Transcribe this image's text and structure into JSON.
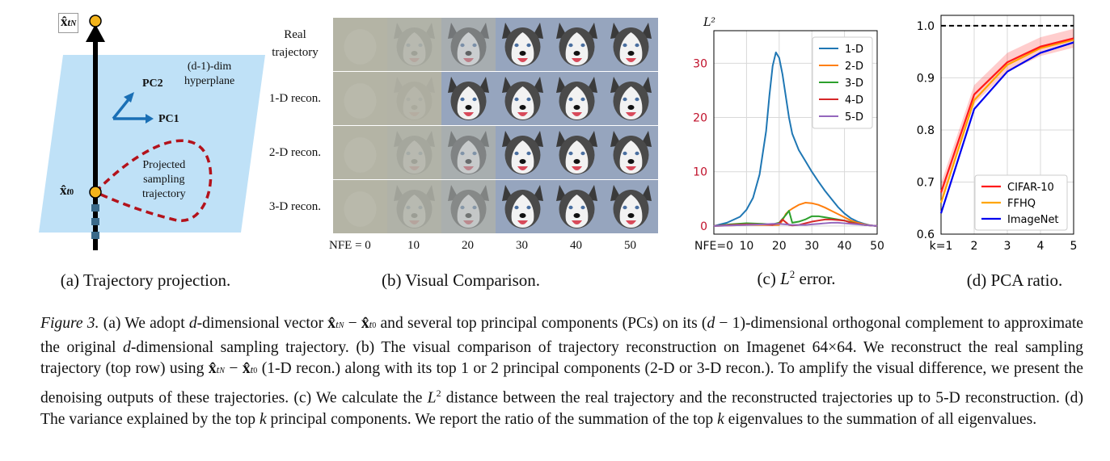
{
  "panels": {
    "a": {
      "caption": "(a) Trajectory projection.",
      "top_point": "x̂",
      "top_sub": "t",
      "top_subsub": "N",
      "bottom_point": "x̂",
      "bottom_sub": "t",
      "bottom_subsub": "0",
      "hyperplane_line1": "(d-1)-dim",
      "hyperplane_line2": "hyperplane",
      "pc2": "PC2",
      "pc1": "PC1",
      "proj_line1": "Projected",
      "proj_line2": "sampling",
      "proj_line3": "trajectory"
    },
    "b": {
      "caption": "(b) Visual Comparison.",
      "rows": [
        "Real\ntrajectory",
        "1-D recon.",
        "2-D recon.",
        "3-D recon."
      ],
      "nfe_ticks": [
        "NFE = 0",
        "10",
        "20",
        "30",
        "40",
        "50"
      ],
      "stages": [
        [
          0,
          0.1,
          0.45,
          1,
          1,
          1
        ],
        [
          0,
          0.05,
          1,
          1,
          1,
          1
        ],
        [
          0,
          0.1,
          0.4,
          1,
          1,
          1
        ],
        [
          0,
          0.12,
          0.35,
          1,
          1,
          1
        ]
      ]
    },
    "c": {
      "caption_prefix": "(c) ",
      "caption_L": "L",
      "caption_sup": "2",
      "caption_suffix": " error."
    },
    "d": {
      "caption": "(d) PCA ratio."
    }
  },
  "chart_data": [
    {
      "type": "line",
      "ylabel": "L²",
      "xlim": [
        0,
        50
      ],
      "ylim": [
        -1.5,
        36
      ],
      "x_ticks": [
        "NFE=0",
        "10",
        "20",
        "30",
        "40",
        "50"
      ],
      "x_tick_values": [
        0,
        10,
        20,
        30,
        40,
        50
      ],
      "y_ticks": [
        0,
        10,
        20,
        30
      ],
      "grid": true,
      "legend_position": "top-right",
      "series": [
        {
          "name": "1-D",
          "color": "#1f77b4",
          "x": [
            0,
            4,
            8,
            10,
            12,
            14,
            16,
            17,
            18,
            19,
            20,
            21,
            22,
            23,
            24,
            26,
            28,
            30,
            32,
            34,
            36,
            38,
            40,
            42,
            44,
            46,
            48,
            50
          ],
          "y": [
            0,
            0.6,
            1.7,
            3.0,
            5.2,
            9.5,
            17.5,
            24.0,
            29.5,
            32.0,
            31.0,
            28.0,
            24.0,
            20.0,
            17.0,
            14.0,
            12.0,
            10.0,
            8.2,
            6.5,
            5.0,
            3.5,
            2.3,
            1.4,
            0.8,
            0.4,
            0.1,
            0
          ]
        },
        {
          "name": "2-D",
          "color": "#ff7f0e",
          "x": [
            0,
            10,
            20,
            21,
            22,
            23,
            24,
            26,
            28,
            30,
            32,
            34,
            36,
            38,
            40,
            42,
            44,
            46,
            48,
            50
          ],
          "y": [
            0,
            0.2,
            0.2,
            1.0,
            2.2,
            2.8,
            3.2,
            3.9,
            4.3,
            4.2,
            3.9,
            3.4,
            2.8,
            2.2,
            1.6,
            1.0,
            0.6,
            0.3,
            0.1,
            0
          ]
        },
        {
          "name": "3-D",
          "color": "#2ca02c",
          "x": [
            0,
            5,
            10,
            15,
            18,
            20,
            22,
            23,
            24,
            26,
            28,
            30,
            32,
            34,
            36,
            38,
            40,
            42,
            44,
            46,
            48,
            50
          ],
          "y": [
            0,
            0.3,
            0.5,
            0.4,
            0.3,
            0.6,
            2.0,
            2.8,
            0.6,
            0.8,
            1.2,
            1.8,
            1.8,
            1.6,
            1.4,
            1.2,
            1.0,
            0.7,
            0.4,
            0.2,
            0.1,
            0
          ]
        },
        {
          "name": "4-D",
          "color": "#d62728",
          "x": [
            0,
            5,
            10,
            15,
            18,
            20,
            21,
            22,
            23,
            24,
            26,
            28,
            30,
            32,
            34,
            36,
            38,
            40,
            42,
            44,
            46,
            48,
            50
          ],
          "y": [
            0,
            0.2,
            0.3,
            0.3,
            0.2,
            0.5,
            1.2,
            0.7,
            0.2,
            0.1,
            0.2,
            0.5,
            0.8,
            1.0,
            1.2,
            1.2,
            1.1,
            1.0,
            0.6,
            0.4,
            0.2,
            0.1,
            0
          ]
        },
        {
          "name": "5-D",
          "color": "#9467bd",
          "x": [
            0,
            5,
            10,
            15,
            18,
            20,
            22,
            24,
            26,
            28,
            30,
            32,
            34,
            36,
            38,
            40,
            42,
            44,
            46,
            48,
            50
          ],
          "y": [
            0,
            0.1,
            0.2,
            0.3,
            0.4,
            0.4,
            0.3,
            0.2,
            0.2,
            0.2,
            0.3,
            0.4,
            0.5,
            0.6,
            0.6,
            0.5,
            0.4,
            0.3,
            0.2,
            0.1,
            0
          ]
        }
      ]
    },
    {
      "type": "line",
      "xlim": [
        1,
        5
      ],
      "ylim": [
        0.6,
        1.02
      ],
      "x_ticks": [
        "k=1",
        "2",
        "3",
        "4",
        "5"
      ],
      "x_tick_values": [
        1,
        2,
        3,
        4,
        5
      ],
      "y_ticks": [
        0.6,
        0.7,
        0.8,
        0.9,
        1.0
      ],
      "y_tick_labels": [
        "0.6",
        "0.7",
        "0.8",
        "0.9",
        "1.0"
      ],
      "reference_line": 1.0,
      "grid": true,
      "legend_position": "bottom-right",
      "series": [
        {
          "name": "CIFAR-10",
          "color": "#ff1a1a",
          "x": [
            1,
            2,
            3,
            4,
            5
          ],
          "y": [
            0.68,
            0.868,
            0.93,
            0.96,
            0.976
          ],
          "band": 0.018
        },
        {
          "name": "FFHQ",
          "color": "#ffa500",
          "x": [
            1,
            2,
            3,
            4,
            5
          ],
          "y": [
            0.66,
            0.857,
            0.925,
            0.957,
            0.973
          ],
          "band": 0.0
        },
        {
          "name": "ImageNet",
          "color": "#0000ee",
          "x": [
            1,
            2,
            3,
            4,
            5
          ],
          "y": [
            0.64,
            0.84,
            0.912,
            0.948,
            0.968
          ],
          "band": 0.0
        }
      ]
    }
  ],
  "caption": {
    "label": "Figure 3.",
    "p1": "(a) We adopt ",
    "d1": "d",
    "p2": "-dimensional vector ",
    "p3": " and several top principal components (PCs) on its (",
    "d2": "d",
    "p4": " − 1)-dimensional orthogonal complement to approximate the original ",
    "d3": "d",
    "p5": "-dimensional sampling trajectory. (b) The visual comparison of trajectory reconstruction on Imagenet 64×64. We reconstruct the real sampling trajectory (top row) using ",
    "p6": " (1-D recon.) along with its top 1 or 2 principal components (2-D or 3-D recon.). To amplify the visual difference, we present the denoising outputs of these trajectories. (c) We calculate the ",
    "L": "L",
    "sup2": "2",
    "p7": " distance between the real trajectory and the reconstructed trajectories up to 5-D reconstruction. (d) The variance explained by the top ",
    "k1": "k",
    "p8": " principal components. We report the ratio of the summation of the top ",
    "k2": "k",
    "p9": " eigenvalues to the summation of all eigenvalues.",
    "vec_x": "x̂",
    "vec_t": "t",
    "vec_N": "N",
    "vec_0": "0",
    "vec_minus": " − "
  }
}
